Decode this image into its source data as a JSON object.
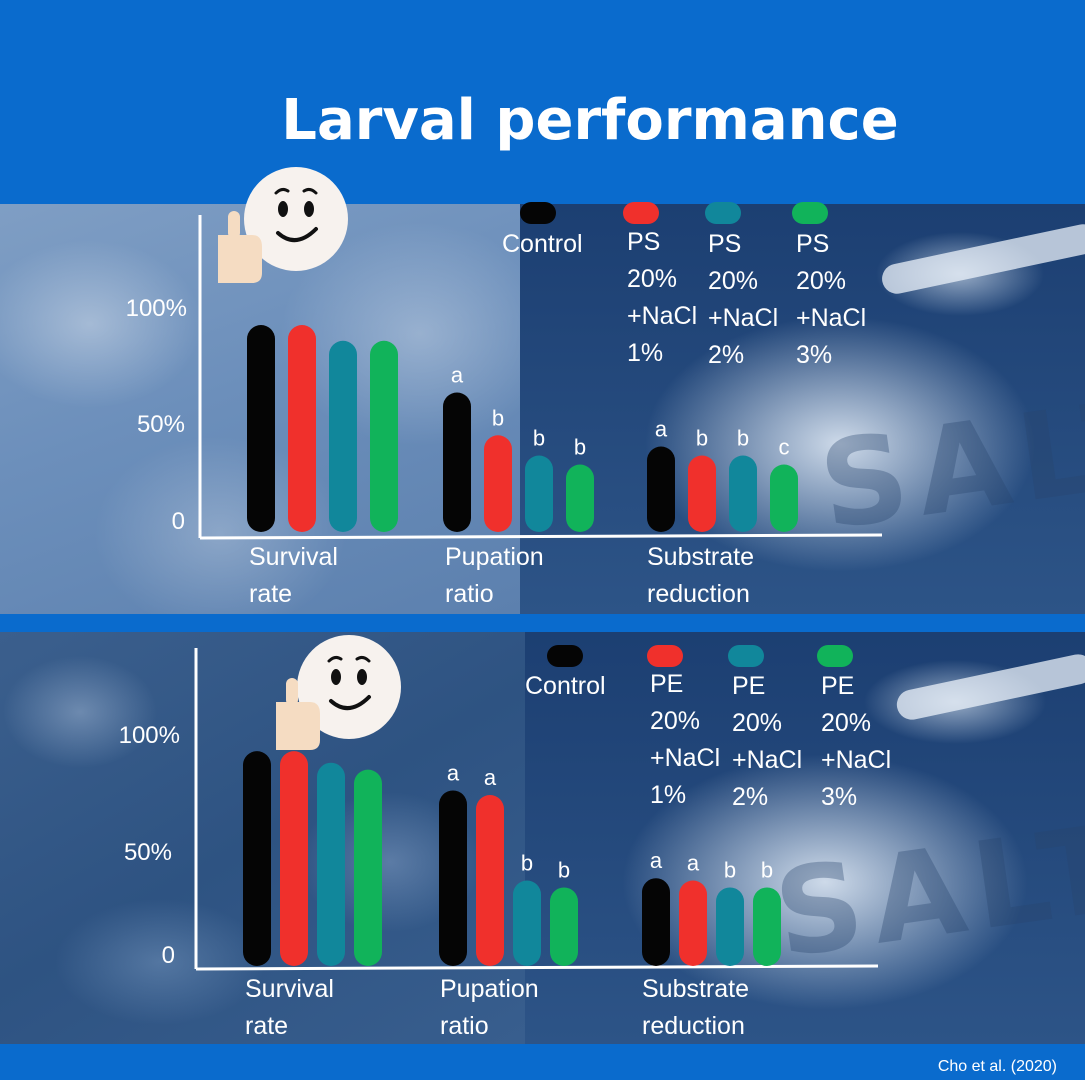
{
  "title": "Larval performance",
  "footer": "Cho et al. (2020)",
  "colors": {
    "header_bg": "#0a6bcd",
    "control": "#050505",
    "nacl1": "#f0302c",
    "nacl2": "#11879b",
    "nacl3": "#11b35a",
    "axis": "#ffffff",
    "text": "#ffffff"
  },
  "icons": [
    "thumbs-up-emoji-icon",
    "thumbs-up-emoji-icon"
  ],
  "background_text": [
    "SALT",
    "SALT"
  ],
  "chart_data": [
    {
      "type": "bar",
      "title": "",
      "categories": [
        "Survival\nrate",
        "Pupation\nratio",
        "Substrate\nreduction"
      ],
      "yticks": [
        "100%",
        "50%",
        "0"
      ],
      "ylim": [
        0,
        100
      ],
      "legend_placement": "top-right",
      "series": [
        {
          "name": "Control",
          "values": [
            92,
            62,
            38
          ],
          "letters": [
            "",
            "a",
            "a"
          ]
        },
        {
          "name": "PS\n20%\n+NaCl\n1%",
          "values": [
            92,
            43,
            34
          ],
          "letters": [
            "",
            "b",
            "b"
          ]
        },
        {
          "name": "PS\n20%\n+NaCl\n2%",
          "values": [
            85,
            34,
            34
          ],
          "letters": [
            "",
            "b",
            "b"
          ]
        },
        {
          "name": "PS\n20%\n+NaCl\n3%",
          "values": [
            85,
            30,
            30
          ],
          "letters": [
            "",
            "b",
            "c"
          ]
        }
      ]
    },
    {
      "type": "bar",
      "title": "",
      "categories": [
        "Survival\nrate",
        "Pupation\nratio",
        "Substrate\nreduction"
      ],
      "yticks": [
        "100%",
        "50%",
        "0"
      ],
      "ylim": [
        0,
        100
      ],
      "legend_placement": "top-right",
      "series": [
        {
          "name": "Control",
          "values": [
            93,
            76,
            38
          ],
          "letters": [
            "",
            "a",
            "a"
          ]
        },
        {
          "name": "PE\n20%\n+NaCl\n1%",
          "values": [
            93,
            74,
            37
          ],
          "letters": [
            "",
            "a",
            "a"
          ]
        },
        {
          "name": "PE\n20%\n+NaCl\n2%",
          "values": [
            88,
            37,
            34
          ],
          "letters": [
            "",
            "b",
            "b"
          ]
        },
        {
          "name": "PE\n20%\n+NaCl\n3%",
          "values": [
            85,
            34,
            34
          ],
          "letters": [
            "",
            "b",
            "b"
          ]
        }
      ]
    }
  ]
}
